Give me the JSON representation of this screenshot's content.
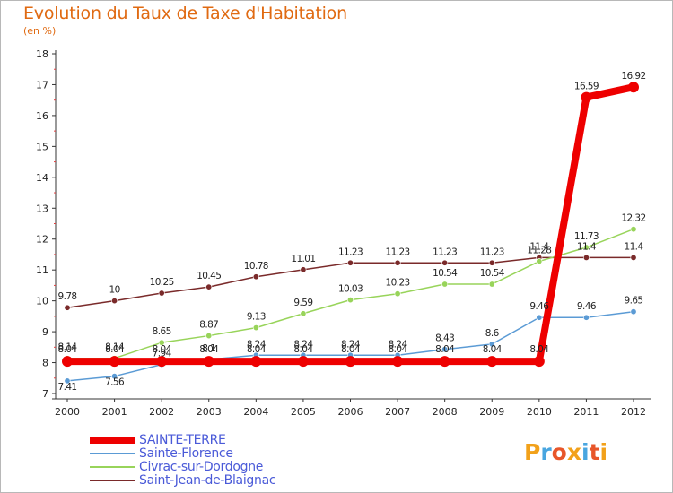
{
  "title": "Evolution du Taux de Taxe d'Habitation",
  "subtitle": "(en %)",
  "logo": {
    "text": "Proxiti",
    "letter_colors": [
      "#f2a11a",
      "#49a6e0",
      "#e8562a",
      "#f2a11a",
      "#49a6e0",
      "#e8562a",
      "#f2a11a"
    ]
  },
  "chart_data": {
    "type": "line",
    "x": [
      "2000",
      "2001",
      "2002",
      "2003",
      "2004",
      "2005",
      "2006",
      "2007",
      "2008",
      "2009",
      "2010",
      "2011",
      "2012"
    ],
    "ylim": [
      7,
      18
    ],
    "yticks": [
      7,
      8,
      9,
      10,
      11,
      12,
      13,
      14,
      15,
      16,
      17,
      18
    ],
    "grid": false,
    "legend_position": "bottom-left",
    "series": [
      {
        "name": "SAINTE-TERRE",
        "color": "#ee0000",
        "values": [
          8.04,
          8.04,
          8.04,
          8.04,
          8.04,
          8.04,
          8.04,
          8.04,
          8.04,
          8.04,
          8.04,
          16.59,
          16.92
        ],
        "labels": [
          "8.04",
          "8.04",
          "8.04",
          "8.04",
          "8.04",
          "8.04",
          "8.04",
          "8.04",
          "8.04",
          "8.04",
          "8.04",
          "16.59",
          "16.92"
        ]
      },
      {
        "name": "Sainte-Florence",
        "color": "#5b9bd5",
        "values": [
          7.41,
          7.56,
          7.94,
          8.1,
          8.24,
          8.24,
          8.24,
          8.24,
          8.43,
          8.6,
          9.46,
          9.46,
          9.65
        ],
        "labels": [
          "7.41",
          "7.56",
          "7.94",
          "8.1",
          "8.24",
          "8.24",
          "8.24",
          "8.24",
          "8.43",
          "8.6",
          "9.46",
          "9.46",
          "9.65"
        ]
      },
      {
        "name": "Civrac-sur-Dordogne",
        "color": "#98d45a",
        "values": [
          8.14,
          8.14,
          8.65,
          8.87,
          9.13,
          9.59,
          10.03,
          10.23,
          10.54,
          10.54,
          11.28,
          11.73,
          12.32
        ],
        "labels": [
          "8.14",
          "8.14",
          "8.65",
          "8.87",
          "9.13",
          "9.59",
          "10.03",
          "10.23",
          "10.54",
          "10.54",
          "11.28",
          "11.73",
          "12.32"
        ]
      },
      {
        "name": "Saint-Jean-de-Blaignac",
        "color": "#7a2a2a",
        "values": [
          9.78,
          10,
          10.25,
          10.45,
          10.78,
          11.01,
          11.23,
          11.23,
          11.23,
          11.23,
          11.4,
          11.4,
          11.4
        ],
        "labels": [
          "9.78",
          "10",
          "10.25",
          "10.45",
          "10.78",
          "11.01",
          "11.23",
          "11.23",
          "11.23",
          "11.23",
          "11.4",
          "11.4",
          "11.4"
        ]
      }
    ]
  }
}
